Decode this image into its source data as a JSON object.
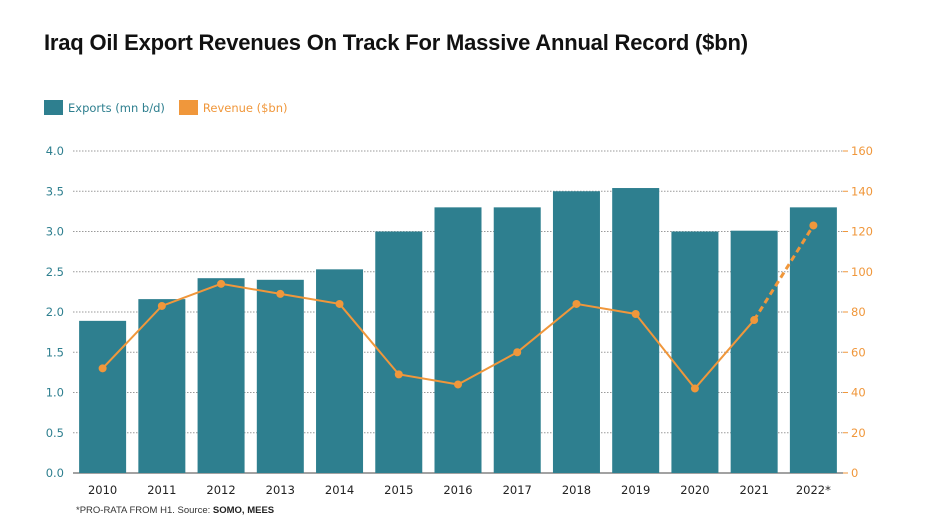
{
  "title": "Iraq Oil Export Revenues On Track For Massive Annual Record ($bn)",
  "footnote": {
    "prefix": "*PRO-RATA FROM H1. Source: ",
    "sources": "SOMO, MEES"
  },
  "colors": {
    "bar": "#2e7f8f",
    "line": "#f0973b",
    "left_axis_text": "#2e7f8f",
    "right_axis_text": "#f0973b",
    "grid": "#9a9a9a"
  },
  "chart_data": {
    "type": "bar",
    "title": "Iraq Oil Export Revenues On Track For Massive Annual Record ($bn)",
    "categories": [
      "2010",
      "2011",
      "2012",
      "2013",
      "2014",
      "2015",
      "2016",
      "2017",
      "2018",
      "2019",
      "2020",
      "2021",
      "2022*"
    ],
    "series": [
      {
        "name": "Exports (mn b/d)",
        "type": "bar",
        "axis": "left",
        "values": [
          1.89,
          2.16,
          2.42,
          2.4,
          2.53,
          3.0,
          3.3,
          3.3,
          3.5,
          3.54,
          3.0,
          3.01,
          3.3
        ]
      },
      {
        "name": "Revenue ($bn)",
        "type": "line",
        "axis": "right",
        "values": [
          52,
          83,
          94,
          89,
          84,
          49,
          44,
          60,
          84,
          79,
          42,
          76,
          123
        ],
        "dashed_from_index": 11
      }
    ],
    "left_axis": {
      "ylim": [
        0,
        4.0
      ],
      "ticks": [
        "0.0",
        "0.5",
        "1.0",
        "1.5",
        "2.0",
        "2.5",
        "3.0",
        "3.5",
        "4.0"
      ]
    },
    "right_axis": {
      "ylim": [
        0,
        160
      ],
      "ticks": [
        "0",
        "20",
        "40",
        "60",
        "80",
        "100",
        "120",
        "140",
        "160"
      ]
    },
    "grid": "horizontal dotted",
    "legend_position": "top-left"
  }
}
